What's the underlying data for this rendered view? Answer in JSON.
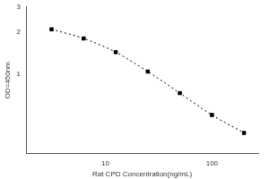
{
  "chart_data": {
    "type": "line",
    "x_label": "Rat CPD Concentration(ng/mL)",
    "y_label": "OD=450nm",
    "x": [
      3.125,
      6.25,
      12.5,
      25,
      50,
      100,
      200
    ],
    "values": [
      2.08,
      1.79,
      1.43,
      1.04,
      0.73,
      0.51,
      0.38
    ],
    "color": "#000000",
    "marker": "square",
    "line_style": "dotted",
    "log": true,
    "xlim": [
      1.8,
      272
    ],
    "xticks": [
      10,
      100
    ],
    "ylim": [
      0.27,
      3
    ],
    "yticks": [
      1,
      2,
      3
    ],
    "grid": false
  }
}
